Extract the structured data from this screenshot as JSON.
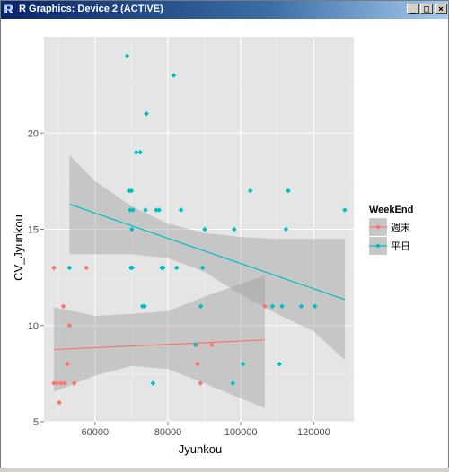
{
  "window": {
    "title": "R Graphics: Device 2 (ACTIVE)",
    "app_icon": "R-logo-icon",
    "buttons": {
      "minimize": "_",
      "maximize": "□",
      "close": "×"
    }
  },
  "colors": {
    "panel": "#e5e5e5",
    "grid_major": "#ffffff",
    "grid_minor": "#f2f2f2",
    "weekend": "#f8766d",
    "weekday": "#00bfc4",
    "ribbon": "#999999"
  },
  "chart_data": {
    "type": "scatter",
    "title": "",
    "xlabel": "Jyunkou",
    "ylabel": "CV_Jyunkou",
    "xlim": [
      46000,
      131000
    ],
    "ylim": [
      5,
      25
    ],
    "x_ticks": [
      60000,
      80000,
      100000,
      120000
    ],
    "x_tick_labels": [
      "60000",
      "80000",
      "100000",
      "120000"
    ],
    "y_ticks": [
      5,
      10,
      15,
      20
    ],
    "y_tick_labels": [
      "5",
      "10",
      "15",
      "20"
    ],
    "grid": true,
    "legend": {
      "title": "WeekEnd",
      "position": "right"
    },
    "series": [
      {
        "name": "週末",
        "color": "#f8766d",
        "points": [
          [
            48700,
            13
          ],
          [
            48700,
            7
          ],
          [
            49500,
            7
          ],
          [
            50200,
            6
          ],
          [
            50600,
            7
          ],
          [
            51300,
            11
          ],
          [
            51600,
            7
          ],
          [
            52400,
            8
          ],
          [
            53000,
            10
          ],
          [
            54300,
            7
          ],
          [
            57600,
            13
          ],
          [
            87900,
            9
          ],
          [
            88100,
            8
          ],
          [
            88900,
            7
          ],
          [
            92000,
            9
          ],
          [
            106600,
            11
          ]
        ],
        "fit": [
          [
            48700,
            8.75
          ],
          [
            106600,
            9.25
          ]
        ],
        "band_lower": [
          [
            48700,
            6.55
          ],
          [
            60000,
            7.4
          ],
          [
            70000,
            7.9
          ],
          [
            80000,
            7.75
          ],
          [
            90000,
            7.0
          ],
          [
            106600,
            5.7
          ]
        ],
        "band_upper": [
          [
            48700,
            10.95
          ],
          [
            60000,
            10.5
          ],
          [
            70000,
            10.6
          ],
          [
            80000,
            10.75
          ],
          [
            90000,
            11.5
          ],
          [
            106600,
            12.6
          ]
        ]
      },
      {
        "name": "平日",
        "color": "#00bfc4",
        "points": [
          [
            53000,
            13
          ],
          [
            68800,
            24
          ],
          [
            69300,
            17
          ],
          [
            69600,
            16
          ],
          [
            69800,
            13
          ],
          [
            70000,
            17
          ],
          [
            70100,
            15
          ],
          [
            70200,
            13
          ],
          [
            70400,
            16
          ],
          [
            71300,
            19
          ],
          [
            72400,
            19
          ],
          [
            73000,
            11
          ],
          [
            73600,
            11
          ],
          [
            73800,
            16
          ],
          [
            74100,
            21
          ],
          [
            75900,
            7
          ],
          [
            76800,
            16
          ],
          [
            77600,
            16
          ],
          [
            78300,
            13
          ],
          [
            78700,
            13
          ],
          [
            81600,
            23
          ],
          [
            82400,
            13
          ],
          [
            83600,
            16
          ],
          [
            87500,
            9
          ],
          [
            89000,
            11
          ],
          [
            89500,
            13
          ],
          [
            90100,
            15
          ],
          [
            97800,
            7
          ],
          [
            98200,
            15
          ],
          [
            100600,
            8
          ],
          [
            102600,
            17
          ],
          [
            108700,
            11
          ],
          [
            110600,
            8
          ],
          [
            111300,
            11
          ],
          [
            112400,
            15
          ],
          [
            113000,
            17
          ],
          [
            116600,
            11
          ],
          [
            120300,
            11
          ],
          [
            128500,
            16
          ]
        ],
        "fit": [
          [
            53000,
            16.3
          ],
          [
            128500,
            11.35
          ]
        ],
        "band_lower": [
          [
            53000,
            13.7
          ],
          [
            70000,
            13.7
          ],
          [
            80000,
            13.5
          ],
          [
            90000,
            12.8
          ],
          [
            100000,
            11.6
          ],
          [
            110000,
            10.6
          ],
          [
            120000,
            9.7
          ],
          [
            128500,
            8.2
          ]
        ],
        "band_upper": [
          [
            53000,
            18.85
          ],
          [
            60000,
            17.5
          ],
          [
            70000,
            16.2
          ],
          [
            80000,
            15.3
          ],
          [
            90000,
            14.8
          ],
          [
            100000,
            14.6
          ],
          [
            110000,
            14.5
          ],
          [
            120000,
            14.5
          ],
          [
            128500,
            14.5
          ]
        ]
      }
    ]
  }
}
